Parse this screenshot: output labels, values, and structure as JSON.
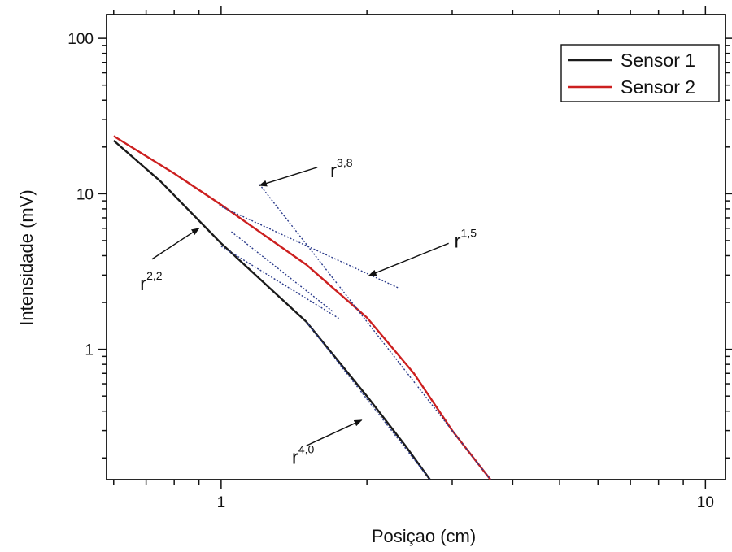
{
  "chart_data": {
    "type": "line",
    "title": "",
    "xlabel": "Posiçao (cm)",
    "ylabel": "Intensidade (mV)",
    "x_scale": "log",
    "y_scale": "log",
    "xlim": [
      0.58,
      11.0
    ],
    "ylim": [
      0.145,
      142
    ],
    "x_ticks": [
      {
        "value": 1,
        "label": "1"
      },
      {
        "value": 10,
        "label": "10"
      }
    ],
    "y_ticks": [
      {
        "value": 1,
        "label": "1"
      },
      {
        "value": 10,
        "label": "10"
      },
      {
        "value": 100,
        "label": "100"
      }
    ],
    "grid": false,
    "legend_position": "top-right",
    "series": [
      {
        "name": "Sensor 1",
        "color": "#1a1a1a",
        "x": [
          0.6,
          0.75,
          1.0,
          1.5,
          2.0,
          2.4,
          2.7
        ],
        "y": [
          22.0,
          12.0,
          4.8,
          1.5,
          0.5,
          0.24,
          0.145
        ]
      },
      {
        "name": "Sensor 2",
        "color": "#cc1f1f",
        "x": [
          0.6,
          0.8,
          1.0,
          1.5,
          2.0,
          2.5,
          3.0,
          3.6
        ],
        "y": [
          23.5,
          13.5,
          8.5,
          3.5,
          1.6,
          0.7,
          0.3,
          0.145
        ]
      }
    ],
    "fit_lines": [
      {
        "x": [
          1.0,
          1.75
        ],
        "y": [
          4.6,
          1.58
        ],
        "color": "#2a3a8a"
      },
      {
        "x": [
          1.05,
          1.7
        ],
        "y": [
          5.7,
          1.75
        ],
        "color": "#2a3a8a"
      },
      {
        "x": [
          0.99,
          2.33
        ],
        "y": [
          8.4,
          2.47
        ],
        "color": "#2a3a8a"
      },
      {
        "x": [
          1.2,
          3.6
        ],
        "y": [
          11.5,
          0.145
        ],
        "color": "#2a3a8a"
      },
      {
        "x": [
          1.5,
          2.7
        ],
        "y": [
          1.5,
          0.145
        ],
        "color": "#2a3a8a"
      }
    ],
    "annotations": [
      {
        "base": "r",
        "exponent": "2,2",
        "text_at": [
          0.68,
          2.4
        ],
        "arrow_from": [
          0.72,
          3.8
        ],
        "arrow_to": [
          0.9,
          6.0
        ]
      },
      {
        "base": "r",
        "exponent": "3,8",
        "text_at": [
          1.68,
          12.8
        ],
        "arrow_from": [
          1.58,
          14.8
        ],
        "arrow_to": [
          1.2,
          11.3
        ]
      },
      {
        "base": "r",
        "exponent": "1,5",
        "text_at": [
          3.03,
          4.5
        ],
        "arrow_from": [
          2.95,
          4.8
        ],
        "arrow_to": [
          2.02,
          2.98
        ]
      },
      {
        "base": "r",
        "exponent": "4,0",
        "text_at": [
          1.4,
          0.183
        ],
        "arrow_from": [
          1.5,
          0.24
        ],
        "arrow_to": [
          1.95,
          0.35
        ]
      }
    ]
  }
}
